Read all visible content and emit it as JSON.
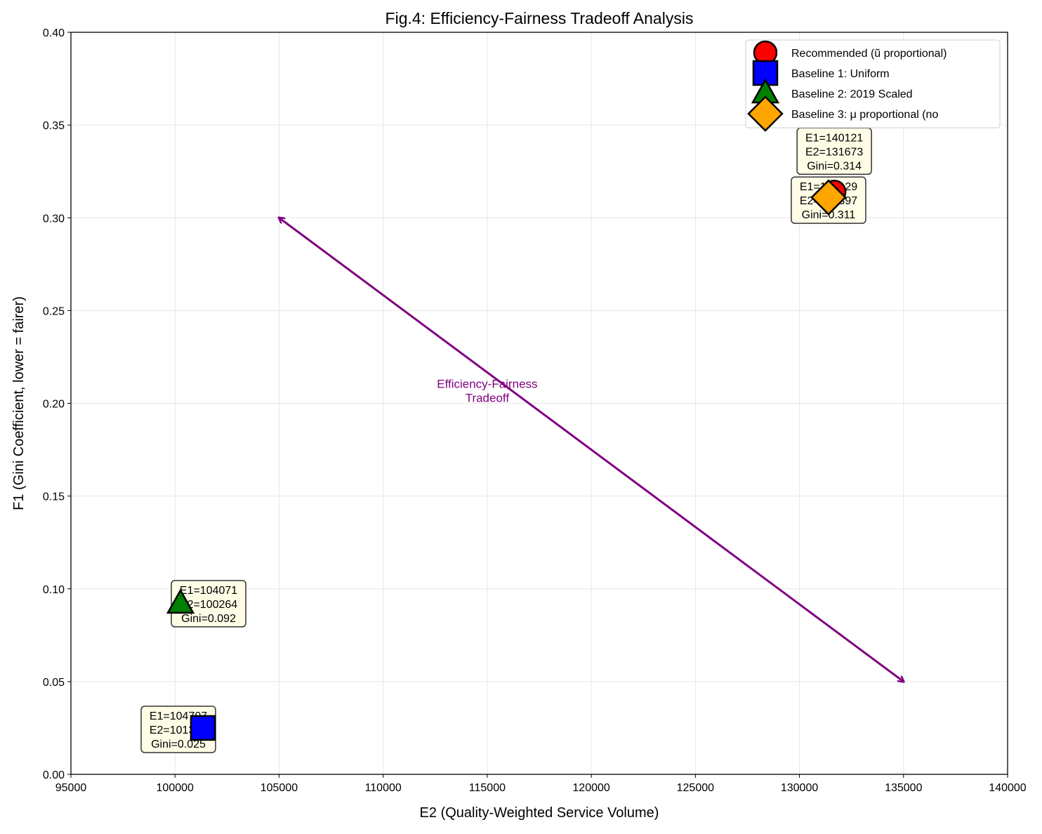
{
  "chart_data": {
    "type": "scatter",
    "title": "Fig.4: Efficiency-Fairness Tradeoff Analysis",
    "xlabel": "E2 (Quality-Weighted Service Volume)",
    "ylabel": "F1 (Gini Coefficient, lower = fairer)",
    "xlim": [
      95000,
      140000
    ],
    "ylim": [
      0,
      0.4
    ],
    "xticks": [
      95000,
      100000,
      105000,
      110000,
      115000,
      120000,
      125000,
      130000,
      135000,
      140000
    ],
    "yticks": [
      0.0,
      0.05,
      0.1,
      0.15,
      0.2,
      0.25,
      0.3,
      0.35,
      0.4
    ],
    "grid": true,
    "legend_placement": "upper-right",
    "series": [
      {
        "name": "Recommended (ũ proportional)",
        "marker": "circle",
        "color": "#ff0000",
        "x": 131673,
        "y": 0.314,
        "label": [
          "E1=140121",
          "E2=131673",
          "Gini=0.314"
        ],
        "label_offset": "above"
      },
      {
        "name": "Baseline 1: Uniform",
        "marker": "square",
        "color": "#0000ff",
        "x": 101342,
        "y": 0.025,
        "label": [
          "E1=104707",
          "E2=101342",
          "Gini=0.025"
        ],
        "label_offset": "left"
      },
      {
        "name": "Baseline 2: 2019 Scaled",
        "marker": "triangle",
        "color": "#008000",
        "x": 100264,
        "y": 0.092,
        "label": [
          "E1=104071",
          "E2=100264",
          "Gini=0.092"
        ],
        "label_offset": "right"
      },
      {
        "name": "Baseline 3: μ proportional (no",
        "marker": "diamond",
        "color": "#ffa500",
        "x": 131397,
        "y": 0.311,
        "label": [
          "E1=139129",
          "E2=131397",
          "Gini=0.311"
        ],
        "label_offset": "center"
      }
    ],
    "annotation": {
      "text": [
        "Efficiency-Fairness",
        "Tradeoff"
      ],
      "color": "#800080",
      "x": 115000,
      "y": 0.206,
      "arrow_from": [
        135000,
        0.05
      ],
      "arrow_to": [
        105000,
        0.3
      ]
    }
  }
}
